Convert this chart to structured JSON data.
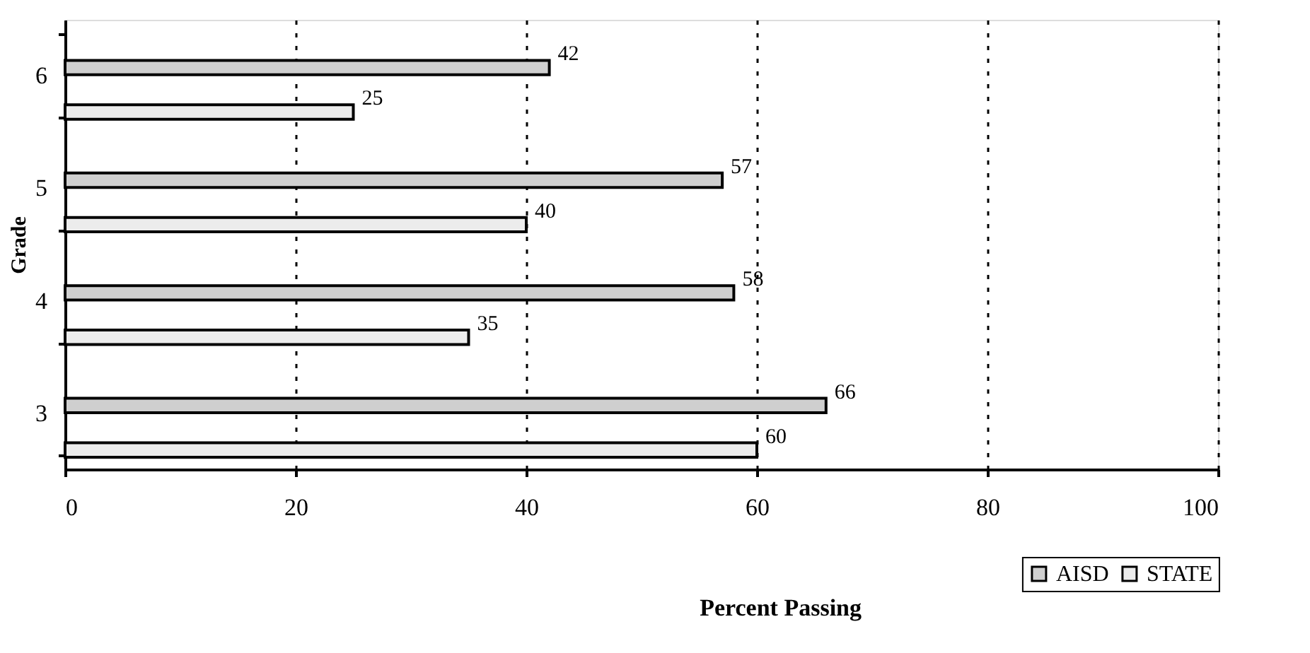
{
  "chart_data": {
    "type": "bar",
    "orientation": "horizontal",
    "xlabel": "Percent Passing",
    "ylabel": "Grade",
    "categories": [
      "6",
      "5",
      "4",
      "3"
    ],
    "series": [
      {
        "name": "AISD",
        "color": "#cfcfcf",
        "values": [
          42,
          57,
          58,
          66
        ]
      },
      {
        "name": "STATE",
        "color": "#ececec",
        "values": [
          25,
          40,
          35,
          60
        ]
      }
    ],
    "xlim": [
      0,
      100
    ],
    "xticks": [
      0,
      20,
      40,
      60,
      80,
      100
    ],
    "grid": "x",
    "legend": "bottom right",
    "data_labels": true
  }
}
